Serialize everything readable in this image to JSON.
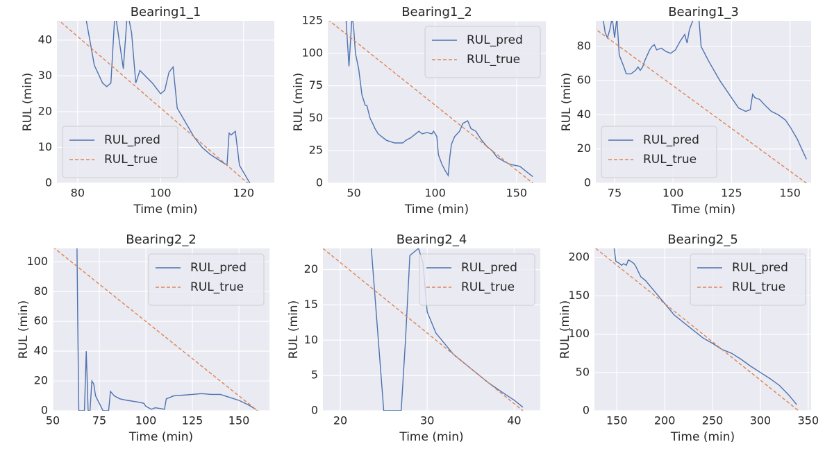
{
  "chart_data": [
    {
      "type": "line",
      "title": "Bearing1_1",
      "xlabel": "Time (min)",
      "ylabel": "RUL (min)",
      "xlim": [
        75,
        127.4
      ],
      "ylim": [
        0,
        45.4
      ],
      "xticks": [
        80,
        100,
        120
      ],
      "yticks": [
        0,
        10,
        20,
        30,
        40
      ],
      "grid": true,
      "legend": "lower left",
      "series": [
        {
          "name": "RUL_pred",
          "color": "#4c72b0",
          "x": [
            82,
            84,
            86,
            87,
            88,
            89,
            91,
            92,
            93,
            94,
            95,
            98,
            100,
            101,
            102,
            103,
            104,
            106,
            108,
            110,
            112,
            114,
            116,
            116.5,
            117,
            118,
            119,
            120,
            121,
            121.5
          ],
          "values": [
            46,
            33,
            28,
            27,
            28,
            48,
            32,
            48,
            42,
            28,
            31.5,
            28,
            25,
            26,
            31,
            32.5,
            21,
            17,
            13,
            10,
            8,
            6.5,
            5,
            14,
            13.5,
            14.5,
            5,
            3,
            1,
            0
          ]
        },
        {
          "name": "RUL_true",
          "color": "#dd8452",
          "linestyle": "dashed",
          "x": [
            75,
            121
          ],
          "values": [
            46,
            0
          ]
        }
      ]
    },
    {
      "type": "line",
      "title": "Bearing1_2",
      "xlabel": "Time (min)",
      "ylabel": "RUL (min)",
      "xlim": [
        34,
        168
      ],
      "ylim": [
        0,
        125
      ],
      "xticks": [
        50,
        100,
        150
      ],
      "yticks": [
        0,
        25,
        50,
        75,
        100,
        125
      ],
      "grid": true,
      "legend": "upper right",
      "series": [
        {
          "name": "RUL_pred",
          "color": "#4c72b0",
          "x": [
            45,
            47,
            48,
            49,
            50,
            51,
            53,
            55,
            57,
            58,
            60,
            62,
            63,
            65,
            70,
            75,
            80,
            82,
            85,
            88,
            90,
            92,
            95,
            98,
            99,
            100,
            101,
            102,
            104,
            106,
            108,
            109,
            110,
            112,
            115,
            117,
            120,
            122,
            125,
            128,
            132,
            135,
            138,
            142,
            145,
            148,
            152,
            155,
            158,
            160
          ],
          "values": [
            130,
            90,
            110,
            130,
            118,
            100,
            88,
            68,
            60,
            60,
            50,
            45,
            42,
            38,
            33,
            31,
            31,
            33,
            35,
            38,
            40,
            38,
            39,
            38,
            40,
            38,
            36,
            22,
            15,
            10,
            6,
            20,
            30,
            36,
            40,
            46,
            48,
            42,
            40,
            34,
            28,
            25,
            20,
            17,
            15,
            14,
            13,
            10,
            7,
            5
          ]
        },
        {
          "name": "RUL_true",
          "color": "#dd8452",
          "linestyle": "dashed",
          "x": [
            34,
            160
          ],
          "values": [
            126,
            0
          ]
        }
      ]
    },
    {
      "type": "line",
      "title": "Bearing1_3",
      "xlabel": "Time (min)",
      "ylabel": "RUL (min)",
      "xlim": [
        67,
        159
      ],
      "ylim": [
        0,
        95
      ],
      "xticks": [
        75,
        100,
        125,
        150
      ],
      "yticks": [
        0,
        20,
        40,
        60,
        80
      ],
      "grid": true,
      "legend": "lower left",
      "series": [
        {
          "name": "RUL_pred",
          "color": "#4c72b0",
          "x": [
            70,
            71,
            72,
            73,
            74,
            75,
            76,
            77,
            79,
            80,
            82,
            84,
            85,
            86,
            87,
            88,
            90,
            91,
            92,
            93,
            95,
            97,
            99,
            101,
            103,
            105,
            106,
            107,
            109,
            110,
            111,
            112,
            115,
            120,
            125,
            128,
            131,
            133,
            134,
            135,
            137,
            139,
            142,
            145,
            148,
            150,
            153,
            155,
            157
          ],
          "values": [
            97,
            88,
            85,
            90,
            97,
            85,
            97,
            75,
            68,
            64,
            64,
            66,
            68,
            66,
            68,
            72,
            78,
            80,
            81,
            78,
            79,
            77,
            76,
            78,
            83,
            87,
            82,
            90,
            97,
            100,
            97,
            80,
            72,
            60,
            50,
            44,
            42,
            43,
            52,
            50,
            49,
            46,
            42,
            40,
            37,
            33,
            26,
            20,
            14
          ]
        },
        {
          "name": "RUL_true",
          "color": "#dd8452",
          "linestyle": "dashed",
          "x": [
            62,
            157
          ],
          "values": [
            95,
            0
          ]
        }
      ]
    },
    {
      "type": "line",
      "title": "Bearing2_2",
      "xlabel": "Time (min)",
      "ylabel": "RUL (min)",
      "xlim": [
        50,
        166.4
      ],
      "ylim": [
        0,
        109
      ],
      "xticks": [
        50,
        75,
        100,
        125,
        150
      ],
      "yticks": [
        0,
        20,
        40,
        60,
        80,
        100
      ],
      "grid": true,
      "legend": "upper right",
      "series": [
        {
          "name": "RUL_pred",
          "color": "#4c72b0",
          "x": [
            63,
            63.5,
            64,
            65,
            67,
            68,
            69,
            70,
            71,
            72,
            73,
            75,
            77,
            80,
            81,
            83,
            86,
            90,
            95,
            99,
            100,
            103,
            105,
            108,
            110,
            111,
            113,
            115,
            120,
            125,
            130,
            135,
            140,
            145,
            150,
            155,
            159
          ],
          "values": [
            112,
            50,
            0,
            0,
            0,
            40,
            0,
            0,
            20,
            18,
            10,
            5,
            0,
            0,
            13,
            10,
            8,
            7,
            6,
            5,
            3,
            1,
            2,
            1.5,
            1,
            8,
            9,
            10,
            10.5,
            11,
            11.5,
            11,
            11,
            9,
            7,
            4,
            1
          ]
        },
        {
          "name": "RUL_true",
          "color": "#dd8452",
          "linestyle": "dashed",
          "x": [
            50,
            160
          ],
          "values": [
            110,
            0
          ]
        }
      ]
    },
    {
      "type": "line",
      "title": "Bearing2_4",
      "xlabel": "Time (min)",
      "ylabel": "RUL (min)",
      "xlim": [
        18,
        43
      ],
      "ylim": [
        0,
        23
      ],
      "xticks": [
        20,
        30,
        40
      ],
      "yticks": [
        0,
        5,
        10,
        15,
        20
      ],
      "grid": true,
      "legend": "upper right",
      "series": [
        {
          "name": "RUL_pred",
          "color": "#4c72b0",
          "x": [
            23.5,
            25,
            27,
            27.5,
            28,
            29,
            29.5,
            30,
            31,
            32,
            33,
            35,
            37,
            39,
            40,
            41
          ],
          "values": [
            24,
            0,
            0,
            10,
            22,
            23,
            21,
            14,
            11,
            9.5,
            8,
            6,
            4,
            2.3,
            1.5,
            0.5
          ]
        },
        {
          "name": "RUL_true",
          "color": "#dd8452",
          "linestyle": "dashed",
          "x": [
            18,
            41
          ],
          "values": [
            23,
            0
          ]
        }
      ]
    },
    {
      "type": "line",
      "title": "Bearing2_5",
      "xlabel": "Time (min)",
      "ylabel": "RUL (min)",
      "xlim": [
        126.6,
        353
      ],
      "ylim": [
        0,
        212
      ],
      "xticks": [
        150,
        200,
        250,
        300,
        350
      ],
      "yticks": [
        0,
        50,
        100,
        150,
        200
      ],
      "grid": true,
      "legend": "upper right",
      "series": [
        {
          "name": "RUL_pred",
          "color": "#4c72b0",
          "x": [
            147,
            149,
            152,
            155,
            157,
            160,
            162,
            165,
            168,
            170,
            175,
            180,
            190,
            200,
            210,
            220,
            230,
            240,
            250,
            260,
            270,
            280,
            290,
            300,
            310,
            320,
            330,
            338
          ],
          "values": [
            214,
            195,
            193,
            190,
            192,
            190,
            197,
            195,
            192,
            188,
            175,
            170,
            155,
            140,
            125,
            115,
            105,
            95,
            88,
            80,
            75,
            67,
            58,
            50,
            42,
            33,
            20,
            8
          ]
        },
        {
          "name": "RUL_true",
          "color": "#dd8452",
          "linestyle": "dashed",
          "x": [
            128,
            340
          ],
          "values": [
            212,
            0
          ]
        }
      ]
    }
  ]
}
